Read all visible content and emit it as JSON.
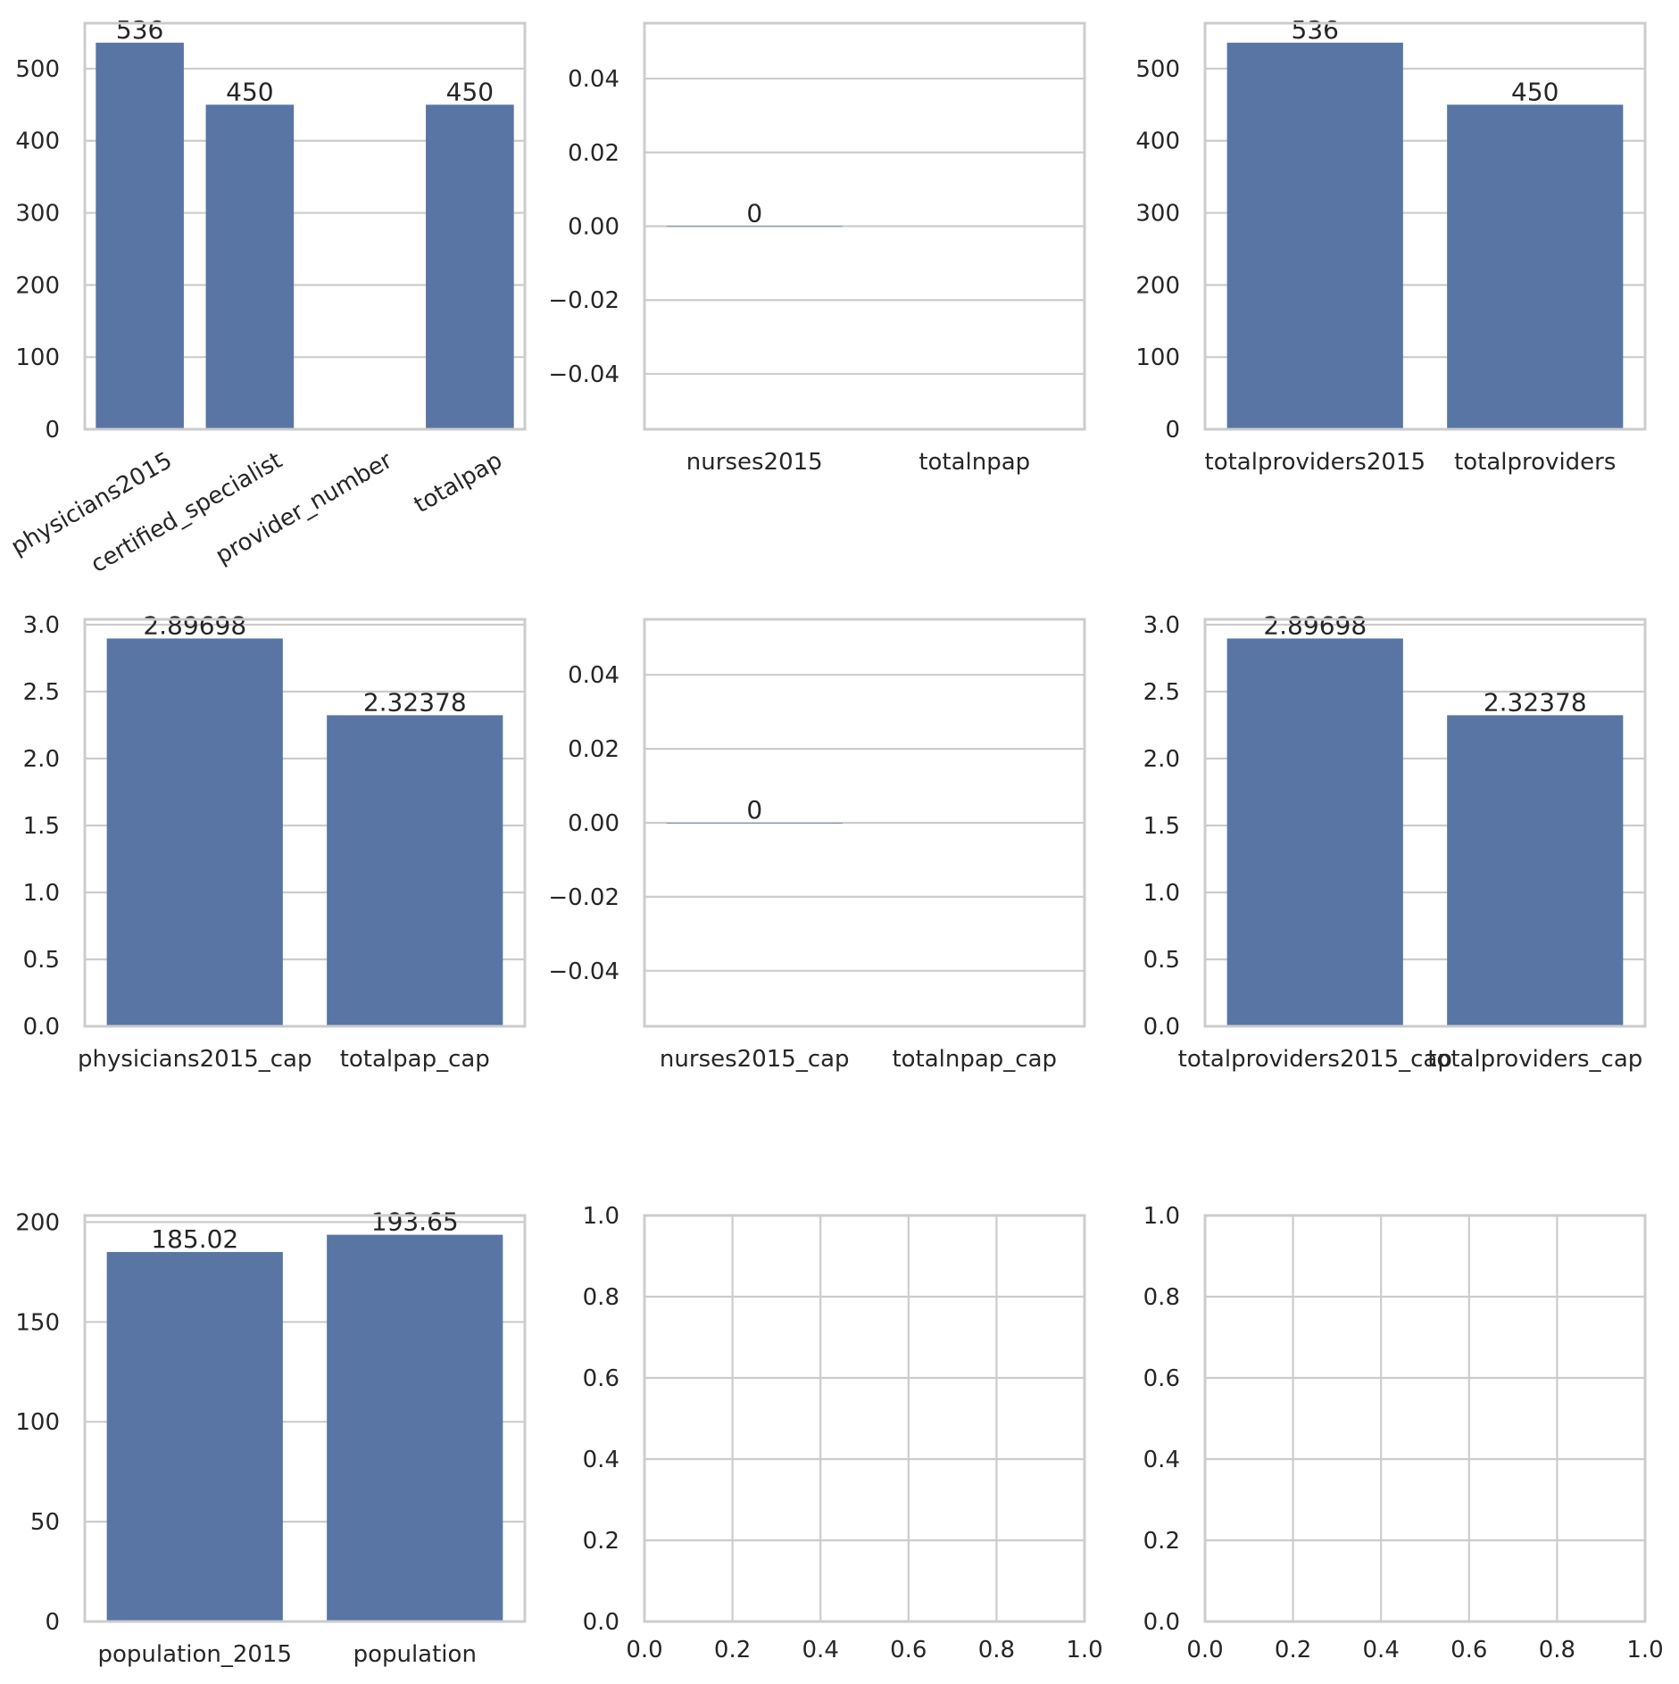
{
  "colors": {
    "bar": "#5875a4",
    "grid": "#cccccc",
    "frame": "#cccccc",
    "text": "#262626"
  },
  "chart_data": [
    {
      "type": "bar",
      "categories": [
        "physicians2015",
        "certified_specialist",
        "provider_number",
        "totalpap"
      ],
      "values": [
        536,
        450,
        null,
        450
      ],
      "value_labels": [
        "536",
        "450",
        "",
        "450"
      ],
      "yticks": [
        0,
        100,
        200,
        300,
        400,
        500
      ],
      "ytick_labels": [
        "0",
        "100",
        "200",
        "300",
        "400",
        "500"
      ],
      "ylim": [
        0,
        563
      ],
      "xtick_rotation": 30,
      "grid": "y"
    },
    {
      "type": "bar",
      "categories": [
        "nurses2015",
        "totalnpap"
      ],
      "values": [
        0,
        null
      ],
      "value_labels": [
        "0",
        ""
      ],
      "yticks": [
        -0.04,
        -0.02,
        0,
        0.02,
        0.04
      ],
      "ytick_labels": [
        "−0.04",
        "−0.02",
        "0.00",
        "0.02",
        "0.04"
      ],
      "ylim": [
        -0.055,
        0.055
      ],
      "grid": "y"
    },
    {
      "type": "bar",
      "categories": [
        "totalproviders2015",
        "totalproviders"
      ],
      "values": [
        536,
        450
      ],
      "value_labels": [
        "536",
        "450"
      ],
      "yticks": [
        0,
        100,
        200,
        300,
        400,
        500
      ],
      "ytick_labels": [
        "0",
        "100",
        "200",
        "300",
        "400",
        "500"
      ],
      "ylim": [
        0,
        563
      ],
      "grid": "y"
    },
    {
      "type": "bar",
      "categories": [
        "physicians2015_cap",
        "totalpap_cap"
      ],
      "values": [
        2.89698,
        2.32378
      ],
      "value_labels": [
        "2.89698",
        "2.32378"
      ],
      "yticks": [
        0,
        0.5,
        1.0,
        1.5,
        2.0,
        2.5,
        3.0
      ],
      "ytick_labels": [
        "0.0",
        "0.5",
        "1.0",
        "1.5",
        "2.0",
        "2.5",
        "3.0"
      ],
      "ylim": [
        0,
        3.04
      ],
      "grid": "y"
    },
    {
      "type": "bar",
      "categories": [
        "nurses2015_cap",
        "totalnpap_cap"
      ],
      "values": [
        0,
        null
      ],
      "value_labels": [
        "0",
        ""
      ],
      "yticks": [
        -0.04,
        -0.02,
        0,
        0.02,
        0.04
      ],
      "ytick_labels": [
        "−0.04",
        "−0.02",
        "0.00",
        "0.02",
        "0.04"
      ],
      "ylim": [
        -0.055,
        0.055
      ],
      "grid": "y"
    },
    {
      "type": "bar",
      "categories": [
        "totalproviders2015_cap",
        "totalproviders_cap"
      ],
      "values": [
        2.89698,
        2.32378
      ],
      "value_labels": [
        "2.89698",
        "2.32378"
      ],
      "yticks": [
        0,
        0.5,
        1.0,
        1.5,
        2.0,
        2.5,
        3.0
      ],
      "ytick_labels": [
        "0.0",
        "0.5",
        "1.0",
        "1.5",
        "2.0",
        "2.5",
        "3.0"
      ],
      "ylim": [
        0,
        3.04
      ],
      "grid": "y"
    },
    {
      "type": "bar",
      "categories": [
        "population_2015",
        "population"
      ],
      "values": [
        185.02,
        193.65
      ],
      "value_labels": [
        "185.02",
        "193.65"
      ],
      "yticks": [
        0,
        50,
        100,
        150,
        200
      ],
      "ytick_labels": [
        "0",
        "50",
        "100",
        "150",
        "200"
      ],
      "ylim": [
        0,
        203.3
      ],
      "grid": "y"
    },
    {
      "type": "empty",
      "xticks": [
        0,
        0.2,
        0.4,
        0.6,
        0.8,
        1.0
      ],
      "xtick_labels": [
        "0.0",
        "0.2",
        "0.4",
        "0.6",
        "0.8",
        "1.0"
      ],
      "yticks": [
        0,
        0.2,
        0.4,
        0.6,
        0.8,
        1.0
      ],
      "ytick_labels": [
        "0.0",
        "0.2",
        "0.4",
        "0.6",
        "0.8",
        "1.0"
      ],
      "xlim": [
        0,
        1
      ],
      "ylim": [
        0,
        1
      ],
      "grid": "both"
    },
    {
      "type": "empty",
      "xticks": [
        0,
        0.2,
        0.4,
        0.6,
        0.8,
        1.0
      ],
      "xtick_labels": [
        "0.0",
        "0.2",
        "0.4",
        "0.6",
        "0.8",
        "1.0"
      ],
      "yticks": [
        0,
        0.2,
        0.4,
        0.6,
        0.8,
        1.0
      ],
      "ytick_labels": [
        "0.0",
        "0.2",
        "0.4",
        "0.6",
        "0.8",
        "1.0"
      ],
      "xlim": [
        0,
        1
      ],
      "ylim": [
        0,
        1
      ],
      "grid": "both"
    }
  ]
}
